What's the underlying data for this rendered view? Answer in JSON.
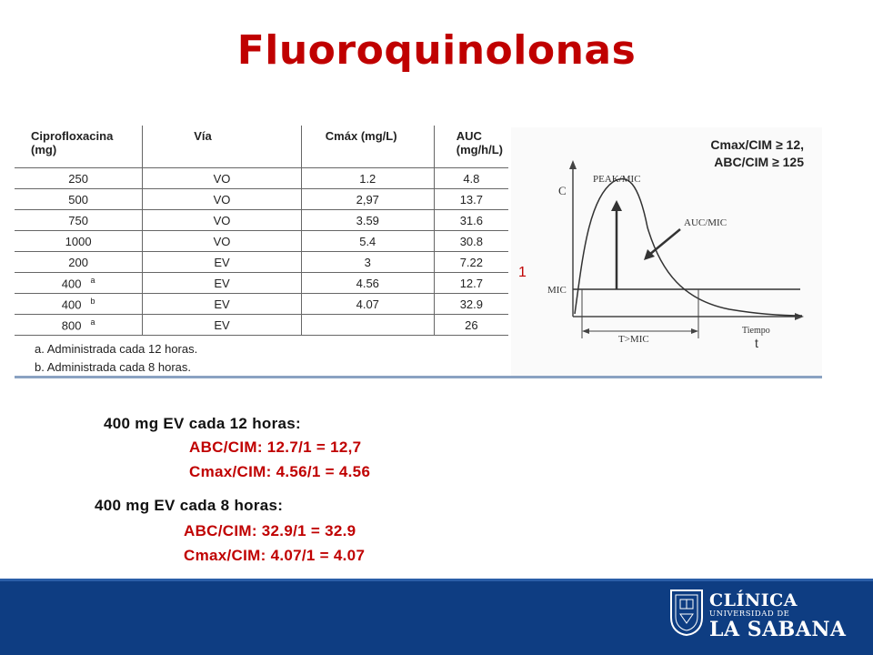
{
  "slide": {
    "title": "Fluoroquinolonas",
    "title_color": "#c00000",
    "band_color": "#0e3d82"
  },
  "table": {
    "headers": [
      "Ciprofloxacina (mg)",
      "Vía",
      "Cmáx (mg/L)",
      "AUC (mg/h/L)"
    ],
    "rows": [
      [
        "250",
        "VO",
        "1.2",
        "4.8"
      ],
      [
        "500",
        "VO",
        "2,97",
        "13.7"
      ],
      [
        "750",
        "VO",
        "3.59",
        "31.6"
      ],
      [
        "1000",
        "VO",
        "5.4",
        "30.8"
      ],
      [
        "200",
        "EV",
        "3",
        "7.22"
      ],
      [
        "400",
        "EV",
        "4.56",
        "12.7"
      ],
      [
        "400",
        "EV",
        "4.07",
        "32.9"
      ],
      [
        "800",
        "EV",
        "",
        "26"
      ]
    ],
    "superscripts": {
      "5": "a",
      "6": "b",
      "7": "a"
    },
    "footnotes": [
      "a. Administrada cada 12 horas.",
      "b. Administrada cada 8  horas."
    ]
  },
  "graph": {
    "header_line1": "Cmax/CIM ≥ 12,",
    "header_line2": "ABC/CIM ≥ 125",
    "y_label": "C",
    "peak_label": "PEAK/MIC",
    "auc_label": "AUC/MIC",
    "mic_label": "MIC",
    "t_mic_label": "T>MIC",
    "time_label": "Tiempo",
    "t_label": "t",
    "mic_value_label": "1"
  },
  "calculations": {
    "q12": {
      "heading": "400 mg EV cada 12 horas:",
      "abc": "ABC/CIM: 12.7/1 = 12,7",
      "cmax": "Cmax/CIM: 4.56/1 =  4.56"
    },
    "q8": {
      "heading": "400 mg EV cada 8 horas:",
      "abc": "ABC/CIM: 32.9/1 = 32.9",
      "cmax": "Cmax/CIM: 4.07/1 =  4.07"
    }
  },
  "logo": {
    "line1": "CLÍNICA",
    "line2": "UNIVERSIDAD DE",
    "line3": "LA SABANA"
  }
}
